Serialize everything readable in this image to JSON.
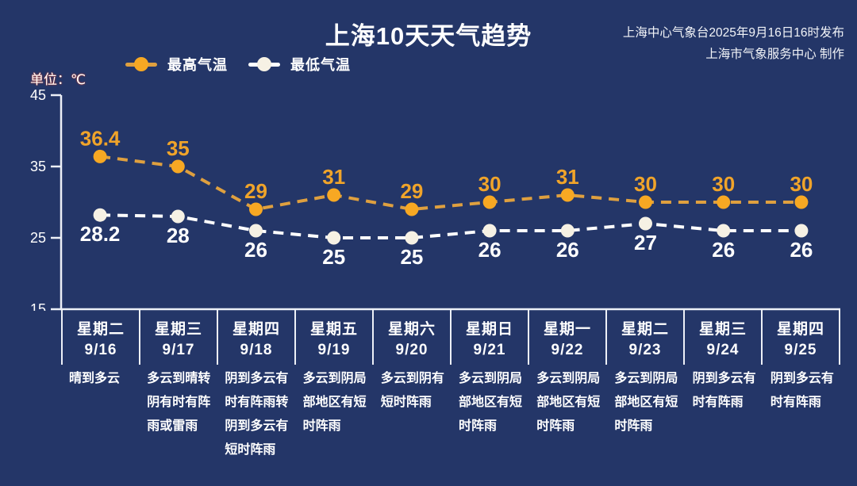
{
  "header": {
    "title": "上海10天天气趋势",
    "attribution_line1": "上海中心气象台2025年9月16日16时发布",
    "attribution_line2": "上海市气象服务中心 制作"
  },
  "unit_label": "单位：℃",
  "legend": [
    {
      "label": "最高气温",
      "line_color": "#dfa03f",
      "dot_color": "#f7a823"
    },
    {
      "label": "最低气温",
      "line_color": "#ffffff",
      "dot_color": "#f6f1e4"
    }
  ],
  "colors": {
    "background": "#243668",
    "axis": "#edf0f7",
    "max_accent": "#f0a42a",
    "min_accent": "#ffffff"
  },
  "chart_data": {
    "type": "line",
    "title": "上海10天天气趋势",
    "ylabel": "单位：℃",
    "ylim": [
      15,
      45
    ],
    "yticks": [
      45,
      35,
      25,
      15
    ],
    "grid": false,
    "legend_position": "top-left",
    "categories": [
      "9/16",
      "9/17",
      "9/18",
      "9/19",
      "9/20",
      "9/21",
      "9/22",
      "9/23",
      "9/24",
      "9/25"
    ],
    "weekdays": [
      "星期二",
      "星期三",
      "星期四",
      "星期五",
      "星期六",
      "星期日",
      "星期一",
      "星期二",
      "星期三",
      "星期四"
    ],
    "weather": [
      "晴到多云",
      "多云到晴转阴有时有阵雨或雷雨",
      "阴到多云有时有阵雨转阴到多云有短时阵雨",
      "多云到阴局部地区有短时阵雨",
      "多云到阴有短时阵雨",
      "多云到阴局部地区有短时阵雨",
      "多云到阴局部地区有短时阵雨",
      "多云到阴局部地区有短时阵雨",
      "阴到多云有时有阵雨",
      "阴到多云有时有阵雨"
    ],
    "series": [
      {
        "name": "最高气温",
        "values": [
          36.4,
          35,
          29,
          31,
          29,
          30,
          31,
          30,
          30,
          30
        ],
        "line_color": "#dfa03f",
        "dot_color": "#f7a823",
        "label_color": "#f0a42a"
      },
      {
        "name": "最低气温",
        "values": [
          28.2,
          28,
          26,
          25,
          25,
          26,
          26,
          27,
          26,
          26
        ],
        "line_color": "#ffffff",
        "dot_color": "#f6f1e4",
        "label_color": "#ffffff"
      }
    ]
  }
}
